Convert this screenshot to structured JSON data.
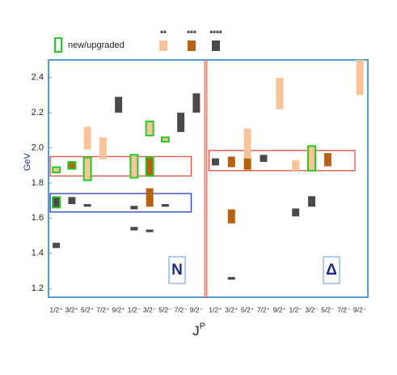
{
  "chart_data": {
    "type": "spectrum",
    "y_label": "GeV",
    "x_label": "J",
    "x_label_sup": "P",
    "ylim": [
      1.15,
      2.5
    ],
    "yticks": [
      1.2,
      1.4,
      1.6,
      1.8,
      {
        "value": 2,
        "label": "2.0"
      },
      2.2,
      2.4
    ],
    "categories": [
      "1/2⁺",
      "3/2⁺",
      "5/2⁺",
      "7/2⁺",
      "9/2⁺",
      "1/2⁻",
      "3/2⁻",
      "5/2⁻",
      "7/2⁻",
      "9/2⁻"
    ],
    "new_label": "new/upgraded",
    "new_color": "#22cc22",
    "ratings": [
      {
        "name": "**",
        "color": "#f9c49a"
      },
      {
        "name": "***",
        "color": "#b8620f"
      },
      {
        "name": "****",
        "color": "#4a4a4a"
      }
    ],
    "panels": [
      {
        "name": "N",
        "boxes": [
          {
            "range": [
              1.84,
              1.95
            ],
            "color": "#e05040"
          },
          {
            "range": [
              1.635,
              1.74
            ],
            "color": "#2040c0"
          }
        ],
        "states": [
          {
            "jp": "1/2⁺",
            "range": [
              1.43,
              1.46
            ],
            "rating": "****"
          },
          {
            "jp": "1/2⁺",
            "range": [
              1.66,
              1.72
            ],
            "rating": "****",
            "new": true
          },
          {
            "jp": "1/2⁺",
            "range": [
              1.86,
              1.89
            ],
            "rating": "**",
            "new": true
          },
          {
            "jp": "3/2⁺",
            "range": [
              1.68,
              1.72
            ],
            "rating": "****"
          },
          {
            "jp": "3/2⁺",
            "range": [
              1.88,
              1.92
            ],
            "rating": "***",
            "new": true
          },
          {
            "jp": "5/2⁺",
            "range": [
              1.665,
              1.68
            ],
            "rating": "****"
          },
          {
            "jp": "5/2⁺",
            "range": [
              1.815,
              1.945
            ],
            "rating": "**",
            "new": true
          },
          {
            "jp": "5/2⁺",
            "range": [
              1.99,
              2.12
            ],
            "rating": "**"
          },
          {
            "jp": "7/2⁺",
            "range": [
              1.935,
              2.06
            ],
            "rating": "**"
          },
          {
            "jp": "9/2⁺",
            "range": [
              2.2,
              2.29
            ],
            "rating": "****"
          },
          {
            "jp": "1/2⁻",
            "range": [
              1.53,
              1.55
            ],
            "rating": "****"
          },
          {
            "jp": "1/2⁻",
            "range": [
              1.65,
              1.67
            ],
            "rating": "****"
          },
          {
            "jp": "1/2⁻",
            "range": [
              1.83,
              1.96
            ],
            "rating": "**",
            "new": true
          },
          {
            "jp": "3/2⁻",
            "range": [
              1.52,
              1.535
            ],
            "rating": "****"
          },
          {
            "jp": "3/2⁻",
            "range": [
              1.665,
              1.77
            ],
            "rating": "***"
          },
          {
            "jp": "3/2⁻",
            "range": [
              1.84,
              1.945
            ],
            "rating": "***",
            "new": true
          },
          {
            "jp": "3/2⁻",
            "range": [
              2.07,
              2.15
            ],
            "rating": "**",
            "new": true
          },
          {
            "jp": "5/2⁻",
            "range": [
              1.665,
              1.68
            ],
            "rating": "****"
          },
          {
            "jp": "5/2⁻",
            "range": [
              2.035,
              2.06
            ],
            "rating": "**",
            "new": true
          },
          {
            "jp": "7/2⁻",
            "range": [
              2.09,
              2.2
            ],
            "rating": "****"
          },
          {
            "jp": "9/2⁻",
            "range": [
              2.2,
              2.31
            ],
            "rating": "****"
          }
        ]
      },
      {
        "name": "Δ",
        "boxes": [
          {
            "range": [
              1.87,
              1.985
            ],
            "color": "#e05040"
          }
        ],
        "states": [
          {
            "jp": "1/2⁺",
            "range": [
              1.9,
              1.94
            ],
            "rating": "****"
          },
          {
            "jp": "3/2⁺",
            "range": [
              1.25,
              1.265
            ],
            "rating": "****"
          },
          {
            "jp": "3/2⁺",
            "range": [
              1.57,
              1.65
            ],
            "rating": "***"
          },
          {
            "jp": "3/2⁺",
            "range": [
              1.89,
              1.95
            ],
            "rating": "***"
          },
          {
            "jp": "5/2⁺",
            "range": [
              1.875,
              1.94
            ],
            "rating": "***"
          },
          {
            "jp": "5/2⁺",
            "range": [
              1.94,
              2.11
            ],
            "rating": "**"
          },
          {
            "jp": "7/2⁺",
            "range": [
              1.92,
              1.96
            ],
            "rating": "****"
          },
          {
            "jp": "9/2⁺",
            "range": [
              2.22,
              2.4
            ],
            "rating": "**"
          },
          {
            "jp": "1/2⁻",
            "range": [
              1.61,
              1.655
            ],
            "rating": "****"
          },
          {
            "jp": "1/2⁻",
            "range": [
              1.87,
              1.93
            ],
            "rating": "**"
          },
          {
            "jp": "3/2⁻",
            "range": [
              1.665,
              1.725
            ],
            "rating": "****"
          },
          {
            "jp": "3/2⁻",
            "range": [
              1.87,
              2.01
            ],
            "rating": "**",
            "new": true
          },
          {
            "jp": "5/2⁻",
            "range": [
              1.895,
              1.97
            ],
            "rating": "***"
          },
          {
            "jp": "9/2⁻",
            "range": [
              2.3,
              2.5
            ],
            "rating": "**"
          }
        ]
      }
    ]
  }
}
